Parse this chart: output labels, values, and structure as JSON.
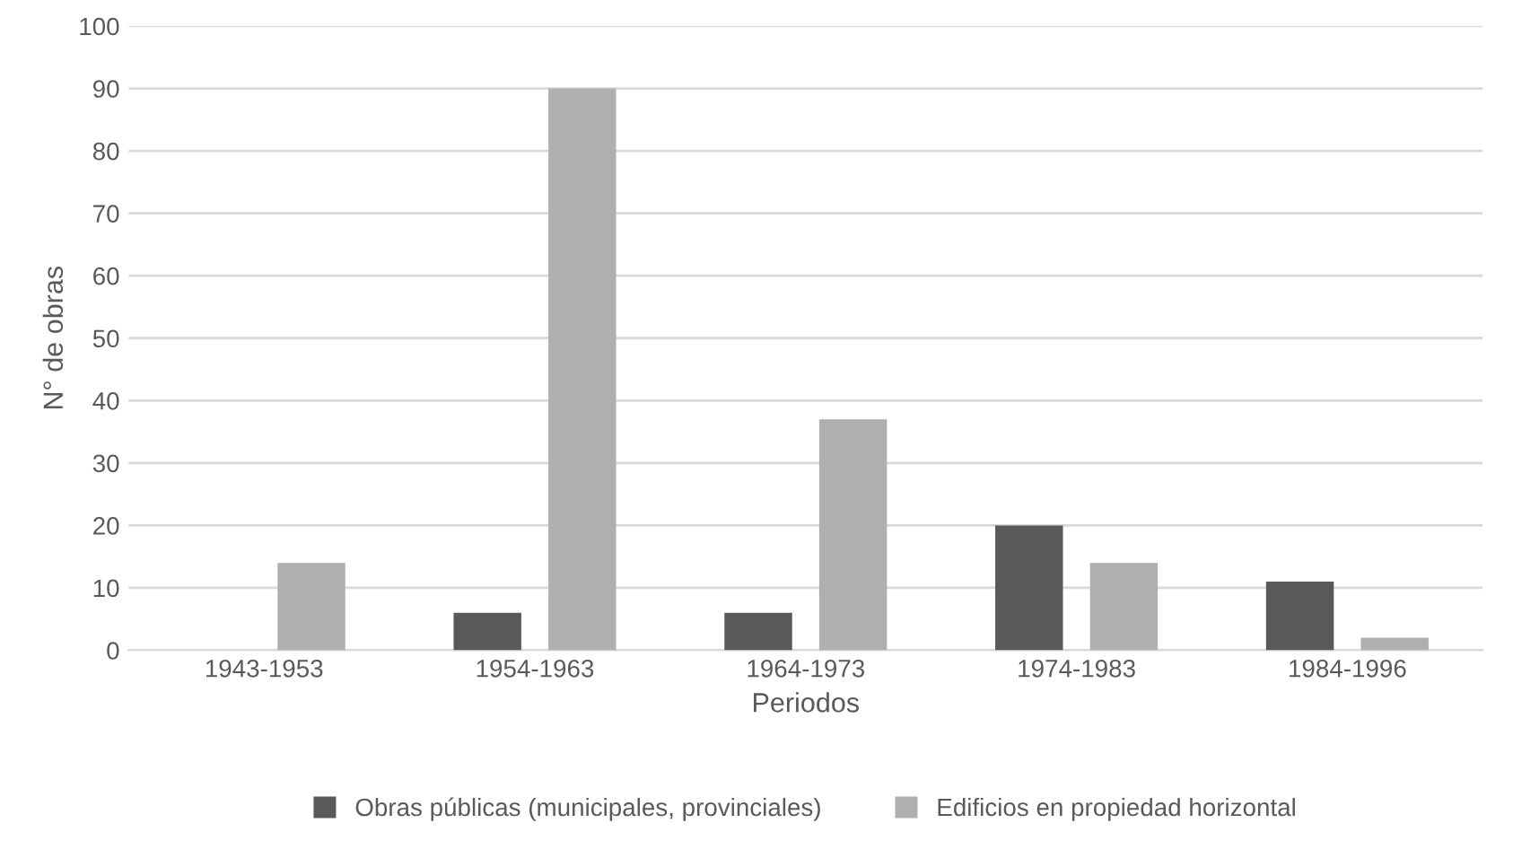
{
  "chart_data": {
    "type": "bar",
    "xlabel": "Periodos",
    "ylabel": "N° de obras",
    "categories": [
      "1943-1953",
      "1954-1963",
      "1964-1973",
      "1974-1983",
      "1984-1996"
    ],
    "series": [
      {
        "name": "Obras públicas (municipales, provinciales)",
        "color": "#595959",
        "values": [
          null,
          6,
          6,
          20,
          11
        ]
      },
      {
        "name": "Edificios en propiedad horizontal",
        "color": "#afafaf",
        "values": [
          14,
          90,
          37,
          14,
          2
        ]
      }
    ],
    "ylim": [
      0,
      100
    ],
    "yticks": [
      0,
      10,
      20,
      30,
      40,
      50,
      60,
      70,
      80,
      90,
      100
    ],
    "grid": "y",
    "legend": "bottom"
  }
}
